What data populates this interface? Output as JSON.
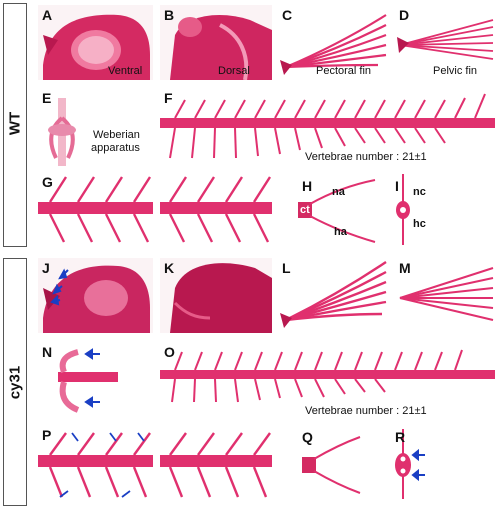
{
  "groups": {
    "wt": "WT",
    "mutant": "cy31"
  },
  "panels": {
    "A": {
      "letter": "A",
      "caption": "Ventral"
    },
    "B": {
      "letter": "B",
      "caption": "Dorsal"
    },
    "C": {
      "letter": "C",
      "caption": "Pectoral fin"
    },
    "D": {
      "letter": "D",
      "caption": "Pelvic fin"
    },
    "E": {
      "letter": "E",
      "caption_line1": "Weberian",
      "caption_line2": "apparatus"
    },
    "F": {
      "letter": "F",
      "caption": "Vertebrae number : 21±1"
    },
    "G": {
      "letter": "G"
    },
    "H": {
      "letter": "H",
      "labels": [
        "na",
        "ct",
        "ha"
      ]
    },
    "I": {
      "letter": "I",
      "labels": [
        "nc",
        "hc"
      ]
    },
    "J": {
      "letter": "J"
    },
    "K": {
      "letter": "K"
    },
    "L": {
      "letter": "L"
    },
    "M": {
      "letter": "M"
    },
    "N": {
      "letter": "N"
    },
    "O": {
      "letter": "O",
      "caption": "Vertebrae number : 21±1"
    },
    "P": {
      "letter": "P"
    },
    "Q": {
      "letter": "Q"
    },
    "R": {
      "letter": "R"
    }
  },
  "colors": {
    "stain": "#e0306e",
    "stain_dark": "#b8184f",
    "arrow": "#1a3fc4",
    "bg": "#fbf3f5"
  }
}
